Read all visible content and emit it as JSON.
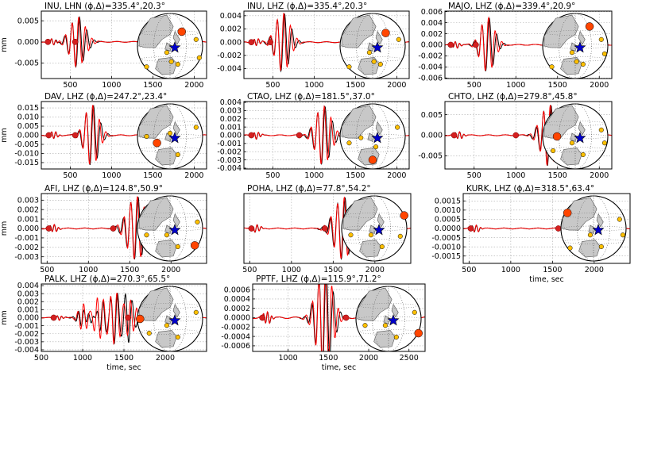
{
  "chart_data": [
    {
      "type": "line",
      "title": "INU, LHN (ϕ,Δ)=335.4°,20.3°",
      "ylabel": "mm",
      "xlabel": "",
      "xlim": [
        150,
        2150
      ],
      "ylim": [
        -0.0087,
        0.0073
      ],
      "xticks": [
        "500",
        "1000",
        "1500",
        "2000"
      ],
      "xtick_values": [
        500,
        1000,
        1500,
        2000
      ],
      "yticks": [
        "0.005",
        "0.000",
        "-0.005"
      ],
      "ytick_values": [
        0.005,
        0,
        -0.005
      ],
      "amplitude": 0.006,
      "wave_center": 590,
      "wave_width": 190,
      "wave_type": "surface",
      "markers": [
        {
          "x": 230,
          "y": 0
        },
        {
          "x": 560,
          "y": 0
        }
      ],
      "globe": {
        "station": [
          0.68,
          0.28
        ],
        "others": [
          [
            0.14,
            0.82
          ],
          [
            0.45,
            0.6
          ],
          [
            0.52,
            0.74
          ],
          [
            0.62,
            0.78
          ],
          [
            0.9,
            0.4
          ],
          [
            0.95,
            0.68
          ]
        ]
      }
    },
    {
      "type": "line",
      "title": "INU, LHZ (ϕ,Δ)=335.4°,20.3°",
      "ylabel": "",
      "xlabel": "",
      "xlim": [
        150,
        2150
      ],
      "ylim": [
        -0.0055,
        0.0047
      ],
      "xticks": [
        "500",
        "1000",
        "1500",
        "2000"
      ],
      "xtick_values": [
        500,
        1000,
        1500,
        2000
      ],
      "yticks": [
        "0.004",
        "0.002",
        "0.000",
        "-0.002",
        "-0.004"
      ],
      "ytick_values": [
        0.004,
        0.002,
        0,
        -0.002,
        -0.004
      ],
      "amplitude": 0.0045,
      "wave_center": 620,
      "wave_width": 180,
      "wave_type": "surface",
      "markers": [
        {
          "x": 240,
          "y": 0
        },
        {
          "x": 470,
          "y": 0
        }
      ],
      "globe": {
        "station": [
          0.7,
          0.3
        ],
        "others": [
          [
            0.14,
            0.82
          ],
          [
            0.45,
            0.6
          ],
          [
            0.52,
            0.74
          ],
          [
            0.62,
            0.78
          ],
          [
            0.9,
            0.4
          ]
        ]
      }
    },
    {
      "type": "line",
      "title": "MAJO, LHZ (ϕ,Δ)=339.4°,20.9°",
      "ylabel": "",
      "xlabel": "",
      "xlim": [
        150,
        2150
      ],
      "ylim": [
        -0.0061,
        0.0061
      ],
      "xticks": [
        "500",
        "1000",
        "1500",
        "2000"
      ],
      "xtick_values": [
        500,
        1000,
        1500,
        2000
      ],
      "yticks": [
        "0.006",
        "0.004",
        "0.002",
        "0.000",
        "-0.002",
        "-0.004",
        "-0.006"
      ],
      "ytick_values": [
        0.006,
        0.004,
        0.002,
        0,
        -0.002,
        -0.004,
        -0.006
      ],
      "amplitude": 0.005,
      "wave_center": 660,
      "wave_width": 170,
      "wave_type": "surface",
      "markers": [
        {
          "x": 220,
          "y": 0
        },
        {
          "x": 520,
          "y": 0
        }
      ],
      "globe": {
        "station": [
          0.72,
          0.2
        ],
        "others": [
          [
            0.14,
            0.82
          ],
          [
            0.45,
            0.6
          ],
          [
            0.52,
            0.74
          ],
          [
            0.62,
            0.78
          ],
          [
            0.9,
            0.4
          ],
          [
            0.95,
            0.62
          ]
        ]
      }
    },
    {
      "type": "line",
      "title": "DAV, LHZ (ϕ,Δ)=247.2°,23.4°",
      "ylabel": "mm",
      "xlabel": "",
      "xlim": [
        150,
        2150
      ],
      "ylim": [
        -0.0185,
        0.0185
      ],
      "xticks": [
        "500",
        "1000",
        "1500",
        "2000"
      ],
      "xtick_values": [
        500,
        1000,
        1500,
        2000
      ],
      "yticks": [
        "0.015",
        "0.010",
        "0.005",
        "0.000",
        "-0.005",
        "-0.010",
        "-0.015"
      ],
      "ytick_values": [
        0.015,
        0.01,
        0.005,
        0,
        -0.005,
        -0.01,
        -0.015
      ],
      "amplitude": 0.017,
      "wave_center": 760,
      "wave_width": 170,
      "wave_type": "surface",
      "markers": [
        {
          "x": 240,
          "y": 0
        },
        {
          "x": 560,
          "y": 0
        }
      ],
      "globe": {
        "station": [
          0.3,
          0.6
        ],
        "others": [
          [
            0.14,
            0.5
          ],
          [
            0.5,
            0.45
          ],
          [
            0.62,
            0.78
          ],
          [
            0.9,
            0.36
          ]
        ]
      }
    },
    {
      "type": "line",
      "title": "CTAO, LHZ (ϕ,Δ)=181.5°,37.0°",
      "ylabel": "",
      "xlabel": "",
      "xlim": [
        150,
        2150
      ],
      "ylim": [
        -0.0041,
        0.0041
      ],
      "xticks": [
        "500",
        "1000",
        "1500",
        "2000"
      ],
      "xtick_values": [
        500,
        1000,
        1500,
        2000
      ],
      "yticks": [
        "0.004",
        "0.003",
        "0.002",
        "0.001",
        "0.000",
        "-0.001",
        "-0.002",
        "-0.003",
        "-0.004"
      ],
      "ytick_values": [
        0.004,
        0.003,
        0.002,
        0.001,
        0,
        -0.001,
        -0.002,
        -0.003,
        -0.004
      ],
      "amplitude": 0.0036,
      "wave_center": 1110,
      "wave_width": 190,
      "wave_type": "surface",
      "markers": [
        {
          "x": 240,
          "y": 0
        },
        {
          "x": 820,
          "y": 0
        }
      ],
      "globe": {
        "station": [
          0.5,
          0.86
        ],
        "others": [
          [
            0.14,
            0.6
          ],
          [
            0.32,
            0.52
          ],
          [
            0.55,
            0.66
          ],
          [
            0.88,
            0.36
          ]
        ]
      }
    },
    {
      "type": "line",
      "title": "CHTO, LHZ (ϕ,Δ)=279.8°,45.8°",
      "ylabel": "",
      "xlabel": "",
      "xlim": [
        150,
        2150
      ],
      "ylim": [
        -0.0082,
        0.0082
      ],
      "xticks": [
        "500",
        "1000",
        "1500",
        "2000"
      ],
      "xtick_values": [
        500,
        1000,
        1500,
        2000
      ],
      "yticks": [
        "0.005",
        "0.000",
        "-0.005"
      ],
      "ytick_values": [
        0.005,
        0,
        -0.005
      ],
      "amplitude": 0.0075,
      "wave_center": 1400,
      "wave_width": 200,
      "wave_type": "surface",
      "markers": [
        {
          "x": 260,
          "y": 0
        },
        {
          "x": 1000,
          "y": 0
        }
      ],
      "globe": {
        "station": [
          0.22,
          0.5
        ],
        "others": [
          [
            0.16,
            0.72
          ],
          [
            0.45,
            0.6
          ],
          [
            0.62,
            0.78
          ],
          [
            0.9,
            0.4
          ],
          [
            0.95,
            0.6
          ]
        ]
      }
    },
    {
      "type": "line",
      "title": "AFI, LHZ (ϕ,Δ)=124.8°,50.9°",
      "ylabel": "mm",
      "xlabel": "",
      "xlim": [
        430,
        2430
      ],
      "ylim": [
        -0.0037,
        0.0037
      ],
      "xticks": [
        "500",
        "1000",
        "1500",
        "2000"
      ],
      "xtick_values": [
        500,
        1000,
        1500,
        2000
      ],
      "yticks": [
        "0.003",
        "0.002",
        "0.001",
        "0.000",
        "-0.001",
        "-0.002",
        "-0.003"
      ],
      "ytick_values": [
        0.003,
        0.002,
        0.001,
        0,
        -0.001,
        -0.002,
        -0.003
      ],
      "amplitude": 0.0034,
      "wave_center": 1580,
      "wave_width": 220,
      "wave_type": "surface",
      "markers": [
        {
          "x": 520,
          "y": 0
        },
        {
          "x": 1300,
          "y": 0
        }
      ],
      "globe": {
        "station": [
          0.88,
          0.76
        ],
        "others": [
          [
            0.14,
            0.6
          ],
          [
            0.45,
            0.6
          ],
          [
            0.62,
            0.78
          ],
          [
            0.92,
            0.4
          ]
        ]
      }
    },
    {
      "type": "line",
      "title": "POHA, LHZ (ϕ,Δ)=77.8°,54.2°",
      "ylabel": "",
      "xlabel": "",
      "xlim": [
        430,
        2430
      ],
      "ylim": [
        -0.0037,
        0.0037
      ],
      "xticks": [
        "500",
        "1000",
        "1500",
        "2000"
      ],
      "xtick_values": [
        500,
        1000,
        1500,
        2000
      ],
      "yticks": [],
      "ytick_values": [],
      "amplitude": 0.0033,
      "wave_center": 1620,
      "wave_width": 220,
      "wave_type": "surface",
      "markers": [
        {
          "x": 520,
          "y": 0
        },
        {
          "x": 1400,
          "y": 0
        }
      ],
      "globe": {
        "station": [
          0.96,
          0.3
        ],
        "others": [
          [
            0.14,
            0.6
          ],
          [
            0.45,
            0.6
          ],
          [
            0.62,
            0.78
          ],
          [
            0.9,
            0.62
          ]
        ]
      }
    },
    {
      "type": "line",
      "title": "KURK, LHZ (ϕ,Δ)=318.5°,63.4°",
      "ylabel": "",
      "xlabel": "time, sec",
      "xlim": [
        430,
        2430
      ],
      "ylim": [
        -0.0019,
        0.0019
      ],
      "xticks": [
        "500",
        "1000",
        "1500",
        "2000"
      ],
      "xtick_values": [
        500,
        1000,
        1500,
        2000
      ],
      "yticks": [
        "0.0015",
        "0.0010",
        "0.0005",
        "0.0000",
        "-0.0005",
        "-0.0010",
        "-0.0015"
      ],
      "ytick_values": [
        0.0015,
        0.001,
        0.0005,
        0,
        -0.0005,
        -0.001,
        -0.0015
      ],
      "amplitude": 0.0017,
      "wave_center": 1960,
      "wave_width": 120,
      "wave_type": "surface",
      "markers": [
        {
          "x": 520,
          "y": 0
        },
        {
          "x": 1570,
          "y": 0
        }
      ],
      "globe": {
        "station": [
          0.1,
          0.26
        ],
        "others": [
          [
            0.14,
            0.8
          ],
          [
            0.45,
            0.6
          ],
          [
            0.62,
            0.78
          ],
          [
            0.9,
            0.36
          ],
          [
            0.95,
            0.6
          ]
        ]
      }
    },
    {
      "type": "line",
      "title": "PALK, LHZ (ϕ,Δ)=270.3°,65.5°",
      "ylabel": "mm",
      "xlabel": "time, sec",
      "xlim": [
        500,
        2500
      ],
      "ylim": [
        -0.0042,
        0.0042
      ],
      "xticks": [
        "500",
        "1000",
        "1500",
        "2000"
      ],
      "xtick_values": [
        500,
        1000,
        1500,
        2000
      ],
      "yticks": [
        "0.004",
        "0.003",
        "0.002",
        "0.001",
        "0.000",
        "-0.001",
        "-0.002",
        "-0.003",
        "-0.004"
      ],
      "ytick_values": [
        0.004,
        0.003,
        0.002,
        0.001,
        0,
        -0.001,
        -0.002,
        -0.003,
        -0.004
      ],
      "amplitude": 0.0025,
      "wave_center": 1400,
      "wave_width": 420,
      "wave_type": "body",
      "markers": [
        {
          "x": 650,
          "y": 0
        },
        {
          "x": 1550,
          "y": 0
        },
        {
          "x": 1990,
          "y": 0
        }
      ],
      "globe": {
        "station": [
          0.04,
          0.5
        ],
        "others": [
          [
            0.18,
            0.72
          ],
          [
            0.45,
            0.6
          ],
          [
            0.62,
            0.78
          ],
          [
            0.9,
            0.4
          ]
        ]
      }
    },
    {
      "type": "line",
      "title": "PPTF, LHZ (ϕ,Δ)=115.9°,71.2°",
      "ylabel": "",
      "xlabel": "time, sec",
      "xlim": [
        560,
        2700
      ],
      "ylim": [
        -0.00072,
        0.00072
      ],
      "xticks": [
        "1000",
        "1500",
        "2000",
        "2500"
      ],
      "xtick_values": [
        1000,
        1500,
        2000,
        2500
      ],
      "yticks": [
        "0.0006",
        "0.0004",
        "0.0002",
        "0.0000",
        "-0.0002",
        "-0.0004",
        "-0.0006"
      ],
      "ytick_values": [
        0.0006,
        0.0004,
        0.0002,
        0,
        -0.0002,
        -0.0004,
        -0.0006
      ],
      "amplitude": 0.0011,
      "wave_center": 1450,
      "wave_width": 200,
      "wave_type": "surface",
      "markers": [
        {
          "x": 680,
          "y": 0
        },
        {
          "x": 1720,
          "y": 0
        }
      ],
      "globe": {
        "station": [
          0.96,
          0.72
        ],
        "others": [
          [
            0.14,
            0.6
          ],
          [
            0.45,
            0.6
          ],
          [
            0.62,
            0.78
          ],
          [
            0.9,
            0.4
          ]
        ]
      }
    }
  ],
  "colors": {
    "observed": "#000000",
    "synthetic": "#ff0000",
    "marker_fill": "#d42020",
    "station_fill": "#ff4500",
    "other_station_fill": "#ffc000",
    "epicenter_star": "#0000cc",
    "land": "#c8c8c8",
    "ocean": "#ffffff",
    "grid": "#aaaaaa"
  }
}
